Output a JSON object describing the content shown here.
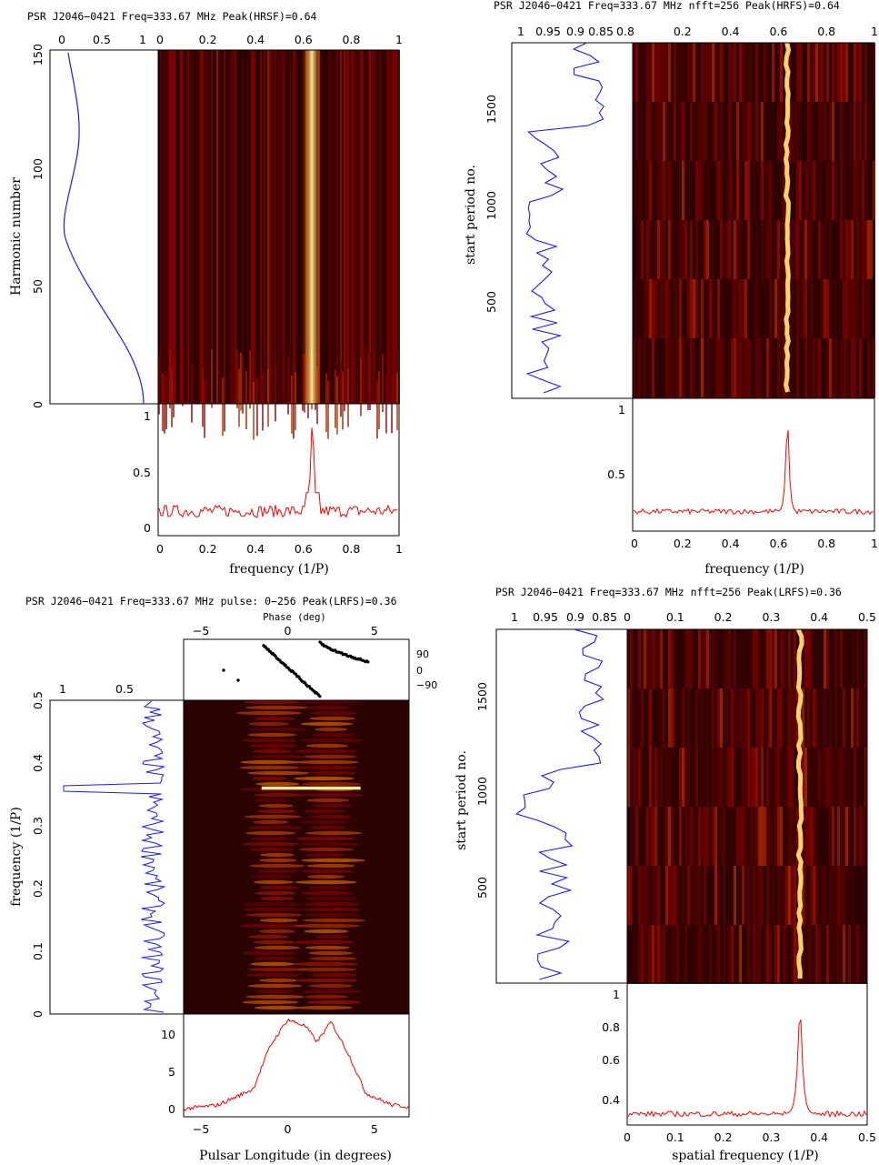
{
  "chart_data": [
    {
      "type": "heatmap",
      "title": "PSR J2046−0421   Freq=333.67 MHz   Peak(HRSF)=0.64",
      "xlabel": "frequency (1/P)",
      "ylabel": "Harmonic number",
      "xlim": [
        0,
        1
      ],
      "ylim": [
        0,
        150
      ],
      "x_ticks": [
        "0",
        "0.2",
        "0.4",
        "0.6",
        "0.8",
        "1"
      ],
      "y_ticks": [
        "0",
        "50",
        "100",
        "150"
      ],
      "side_ticks": [
        "0",
        "0.5",
        "1"
      ],
      "bottom_ticks": [
        "0",
        "0.5",
        "1"
      ],
      "peak_x": 0.64,
      "side_profile": {
        "x": [
          0.05,
          0.1,
          0.08,
          0.04,
          0.1,
          0.3,
          0.6,
          0.85,
          0.97,
          1.0
        ],
        "y": [
          150,
          130,
          110,
          90,
          70,
          55,
          40,
          25,
          10,
          0
        ]
      },
      "bottom_spectrum": {
        "peak_x": 0.64,
        "peak_y": 1.0,
        "baseline": 0.2,
        "ylim": [
          0,
          1.05
        ]
      }
    },
    {
      "type": "heatmap",
      "title": "PSR J2046−0421   Freq=333.67 MHz   nfft=256   Peak(HRFS)=0.64",
      "xlabel": "frequency (1/P)",
      "ylabel": "start period no.",
      "xlim": [
        0,
        1
      ],
      "ylim": [
        0,
        1800
      ],
      "x_ticks": [
        "0",
        "0.2",
        "0.4",
        "0.6",
        "0.8",
        "1"
      ],
      "y_ticks": [
        "500",
        "1000",
        "1500"
      ],
      "side_ticks": [
        "1",
        "0.95",
        "0.9",
        "0.85",
        "0.8"
      ],
      "bottom_ticks": [
        "0.5",
        "1"
      ],
      "peak_x": 0.64,
      "bottom_spectrum": {
        "peak_x": 0.64,
        "peak_y": 1.0,
        "baseline": 0.2,
        "ylim": [
          0.05,
          1.05
        ]
      }
    },
    {
      "type": "heatmap",
      "title": "PSR J2046−0421   Freq=333.67 MHz   pulse: 0−256   Peak(LRFS)=0.36",
      "xlabel": "Pulsar Longitude (in degrees)",
      "ylabel": "frequency (1/P)",
      "top_label": "Phase (deg)",
      "xlim": [
        -6,
        7
      ],
      "ylim": [
        0,
        0.5
      ],
      "x_ticks": [
        "−5",
        "0",
        "5"
      ],
      "top_ticks": [
        "−5",
        "0",
        "5"
      ],
      "y_ticks": [
        "0",
        "0.1",
        "0.2",
        "0.3",
        "0.4",
        "0.5"
      ],
      "phase_ticks": [
        "90",
        "0",
        "−90"
      ],
      "side_ticks": [
        "1",
        "0.5"
      ],
      "bottom_ticks": [
        "0",
        "5",
        "10"
      ],
      "peak_y": 0.36,
      "profile": {
        "x": [
          -6,
          -4,
          -2,
          -1,
          0,
          1,
          1.7,
          2.5,
          3.5,
          4.5,
          6,
          7
        ],
        "y": [
          0,
          0.5,
          2.5,
          8,
          11.3,
          10.5,
          8.5,
          11,
          7,
          2,
          0.5,
          0.3
        ]
      }
    },
    {
      "type": "heatmap",
      "title": "PSR J2046−0421   Freq=333.67 MHz   nfft=256   Peak(LRFS)=0.36",
      "xlabel": "spatial frequency (1/P)",
      "ylabel": "start period no.",
      "xlim": [
        0,
        0.5
      ],
      "ylim": [
        0,
        1800
      ],
      "x_ticks": [
        "0",
        "0.1",
        "0.2",
        "0.3",
        "0.4",
        "0.5"
      ],
      "y_ticks": [
        "500",
        "1000",
        "1500"
      ],
      "side_ticks": [
        "1",
        "0.95",
        "0.9",
        "0.85"
      ],
      "bottom_ticks": [
        "0.4",
        "0.6",
        "0.8",
        "1"
      ],
      "peak_x": 0.36,
      "bottom_spectrum": {
        "peak_x": 0.36,
        "peak_y": 1.0,
        "baseline": 0.34,
        "ylim": [
          0.28,
          1.02
        ]
      }
    }
  ]
}
